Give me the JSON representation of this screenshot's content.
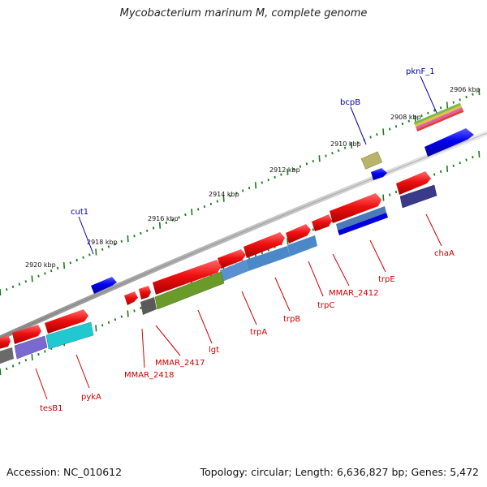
{
  "title": "Mycobacterium marinum M, complete genome",
  "footer": {
    "accession": "Accession: NC_010612",
    "topology": "Topology: circular; Length: 6,636,827 bp; Genes: 5,472"
  },
  "kbp_ticks": [
    "2906 kbp",
    "2908 kbp",
    "2910 kbp",
    "2912 kbp",
    "2914 kbp",
    "2916 kbp",
    "2918 kbp",
    "2920 kbp"
  ],
  "gene_labels": [
    "pknF_1",
    "bcpB",
    "cut1",
    "chaA",
    "trpE",
    "MMAR_2412",
    "trpC",
    "trpB",
    "trpA",
    "lgt",
    "MMAR_2417",
    "MMAR_2418",
    "pykA",
    "tesB1"
  ],
  "colors": {
    "backbone": "#7a7a7a",
    "tick": "#1a7a1a",
    "gene_forward": "#0000ee",
    "gene_reverse": "#ee0000",
    "label_blue": "#0000aa",
    "label_red": "#cc0000"
  }
}
